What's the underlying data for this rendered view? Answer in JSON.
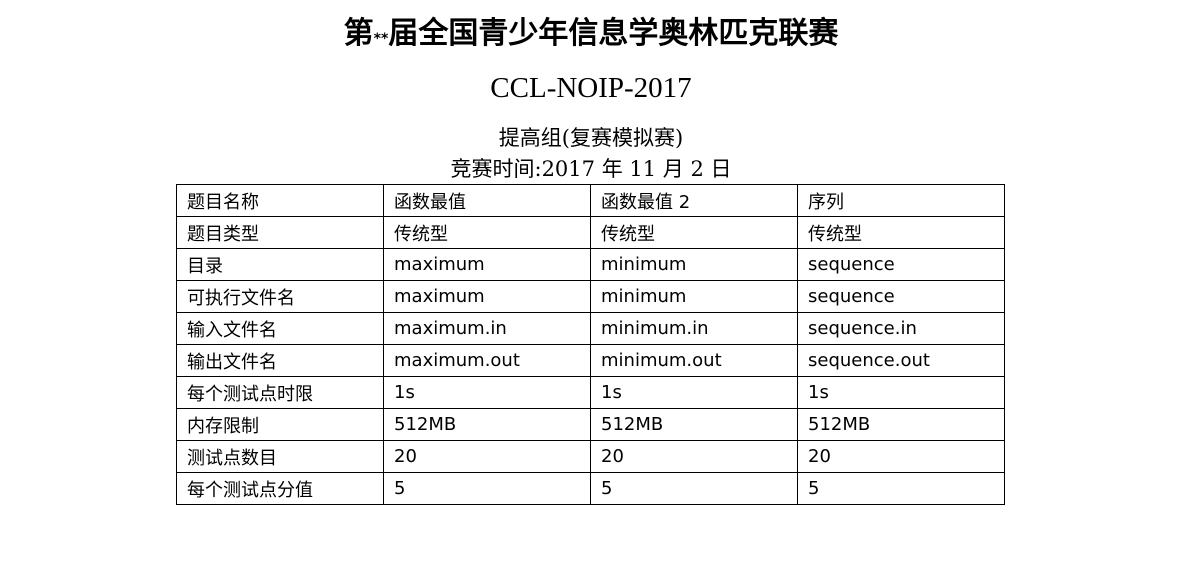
{
  "header": {
    "title_prefix": "第",
    "title_stars": "**",
    "title_suffix": "届全国青少年信息学奥林匹克联赛",
    "code": "CCL-NOIP-2017",
    "subtitle": "提高组(复赛模拟赛)",
    "date": "竞赛时间:2017 年 11 月 2 日"
  },
  "table": {
    "rows": [
      [
        "题目名称",
        "函数最值",
        "函数最值 2",
        "序列"
      ],
      [
        "题目类型",
        "传统型",
        "传统型",
        "传统型"
      ],
      [
        "目录",
        "maximum",
        "minimum",
        "sequence"
      ],
      [
        "可执行文件名",
        "maximum",
        "minimum",
        "sequence"
      ],
      [
        "输入文件名",
        "maximum.in",
        "minimum.in",
        "sequence.in"
      ],
      [
        "输出文件名",
        "maximum.out",
        "minimum.out",
        "sequence.out"
      ],
      [
        "每个测试点时限",
        "1s",
        "1s",
        "1s"
      ],
      [
        "内存限制",
        "512MB",
        "512MB",
        "512MB"
      ],
      [
        "测试点数目",
        "20",
        "20",
        "20"
      ],
      [
        "每个测试点分值",
        "5",
        "5",
        "5"
      ]
    ]
  }
}
